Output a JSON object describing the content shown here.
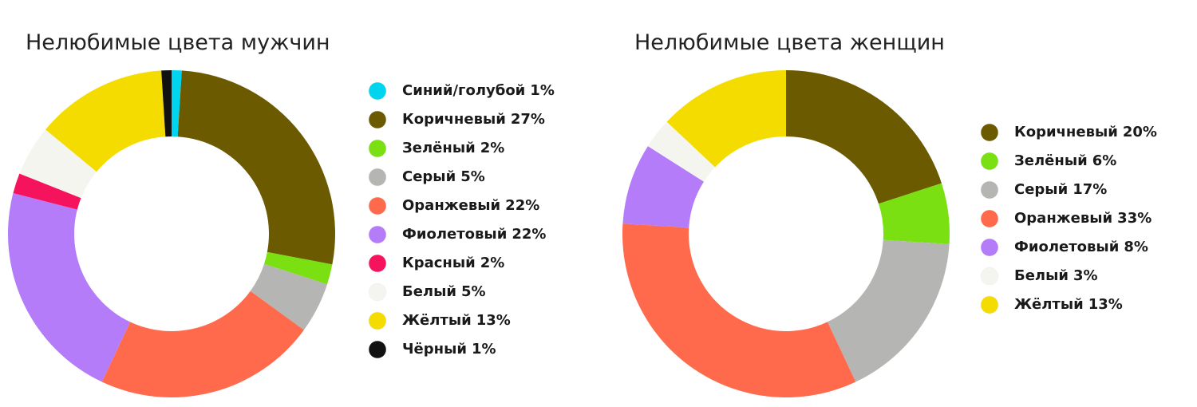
{
  "chart_data": [
    {
      "type": "donut",
      "title": "Нелюбимые цвета мужчин",
      "categories": [
        "Синий/голубой",
        "Коричневый",
        "Зелёный",
        "Серый",
        "Оранжевый",
        "Фиолетовый",
        "Красный",
        "Белый",
        "Жёлтый",
        "Чёрный"
      ],
      "values": [
        1,
        27,
        2,
        5,
        22,
        22,
        2,
        5,
        13,
        1
      ],
      "value_labels": [
        "1%",
        "27%",
        "2%",
        "5%",
        "22%",
        "22%",
        "2%",
        "5%",
        "13%",
        "1%"
      ],
      "colors": [
        "#00d4ef",
        "#6b5a00",
        "#7ae012",
        "#b5b5b3",
        "#ff6a4d",
        "#b47cf9",
        "#f6135e",
        "#f5f5ef",
        "#f5dc00",
        "#111111"
      ]
    },
    {
      "type": "donut",
      "title": "Нелюбимые цвета женщин",
      "categories": [
        "Коричневый",
        "Зелёный",
        "Серый",
        "Оранжевый",
        "Фиолетовый",
        "Белый",
        "Жёлтый"
      ],
      "values": [
        20,
        6,
        17,
        33,
        8,
        3,
        13
      ],
      "value_labels": [
        "20%",
        "6%",
        "17%",
        "33%",
        "8%",
        "3%",
        "13%"
      ],
      "colors": [
        "#6b5a00",
        "#7ae012",
        "#b5b5b3",
        "#ff6a4d",
        "#b47cf9",
        "#f5f5ef",
        "#f5dc00"
      ]
    }
  ]
}
